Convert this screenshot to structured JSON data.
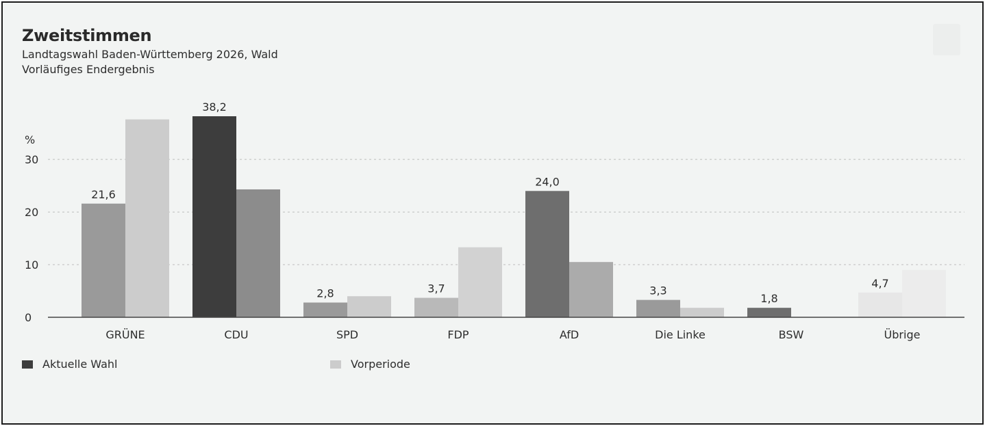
{
  "header": {
    "title": "Zweitstimmen",
    "subtitle_1": "Landtagswahl Baden-Württemberg 2026, Wald",
    "subtitle_2": "Vorläufiges Endergebnis"
  },
  "colors": {
    "background": "#f2f4f3",
    "grid": "#bdbdbd",
    "axis": "#444444",
    "legend_current": "#3d3d3d",
    "legend_previous": "#cccccc"
  },
  "chart_data": {
    "type": "bar",
    "title": "Zweitstimmen",
    "ylabel": "%",
    "ylim": [
      0,
      38.2
    ],
    "yticks": [
      0,
      10,
      20,
      30
    ],
    "ytick_labels": [
      "0",
      "10",
      "20",
      "30"
    ],
    "grid": true,
    "legend_position": "bottom-left",
    "categories": [
      "GRÜNE",
      "CDU",
      "SPD",
      "FDP",
      "AfD",
      "Die Linke",
      "BSW",
      "Übrige"
    ],
    "series": [
      {
        "name": "Aktuelle Wahl",
        "values": [
          21.6,
          38.2,
          2.8,
          3.7,
          24.0,
          3.3,
          1.8,
          4.7
        ],
        "labels": [
          "21,6",
          "38,2",
          "2,8",
          "3,7",
          "24,0",
          "3,3",
          "1,8",
          "4,7"
        ],
        "colors": [
          "#9a9a9a",
          "#3d3d3d",
          "#9a9a9a",
          "#b9b9b9",
          "#6e6e6e",
          "#9a9a9a",
          "#6e6e6e",
          "#e7e7e7"
        ]
      },
      {
        "name": "Vorperiode",
        "values": [
          37.6,
          24.3,
          4.0,
          13.3,
          10.5,
          1.8,
          0,
          9.0
        ],
        "colors": [
          "#cccccc",
          "#8c8c8c",
          "#cccccc",
          "#d2d2d2",
          "#ababab",
          "#cccccc",
          "#ababab",
          "#ececec"
        ]
      }
    ]
  }
}
